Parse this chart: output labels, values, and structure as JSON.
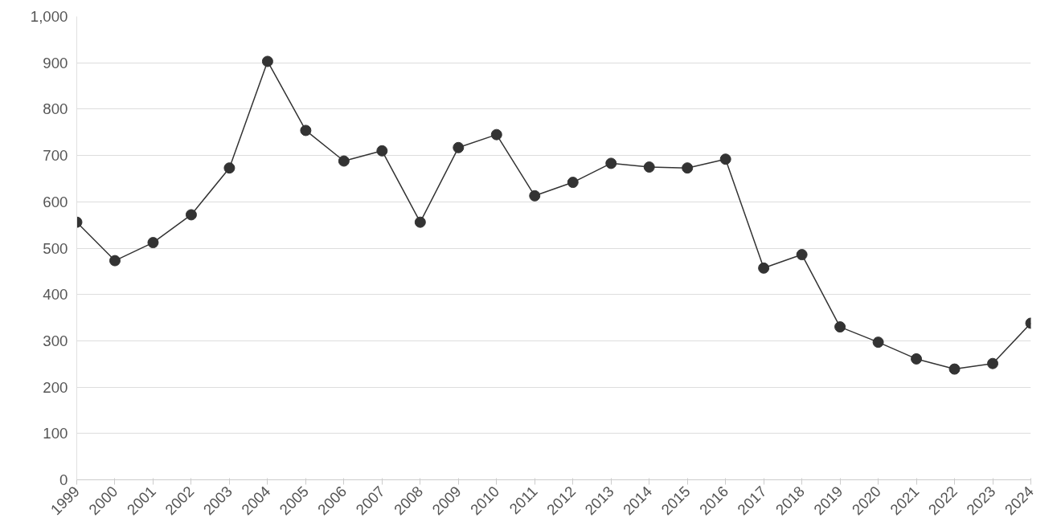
{
  "chart_data": {
    "type": "line",
    "categories": [
      "1999",
      "2000",
      "2001",
      "2002",
      "2003",
      "2004",
      "2005",
      "2006",
      "2007",
      "2008",
      "2009",
      "2010",
      "2011",
      "2012",
      "2013",
      "2014",
      "2015",
      "2016",
      "2017",
      "2018",
      "2019",
      "2020",
      "2021",
      "2022",
      "2023",
      "2024"
    ],
    "series": [
      {
        "color": "#333333",
        "values": [
          556,
          473,
          512,
          572,
          673,
          903,
          754,
          688,
          710,
          556,
          717,
          745,
          613,
          642,
          683,
          675,
          673,
          692,
          457,
          486,
          330,
          297,
          261,
          239,
          251,
          338
        ]
      }
    ],
    "ylim": [
      0,
      1000
    ],
    "yticks": [
      0,
      100,
      200,
      300,
      400,
      500,
      600,
      700,
      800,
      900,
      {
        "value": 1000,
        "label": "1,000"
      }
    ],
    "grid": "y",
    "marker": "circle",
    "line_style": "solid"
  }
}
